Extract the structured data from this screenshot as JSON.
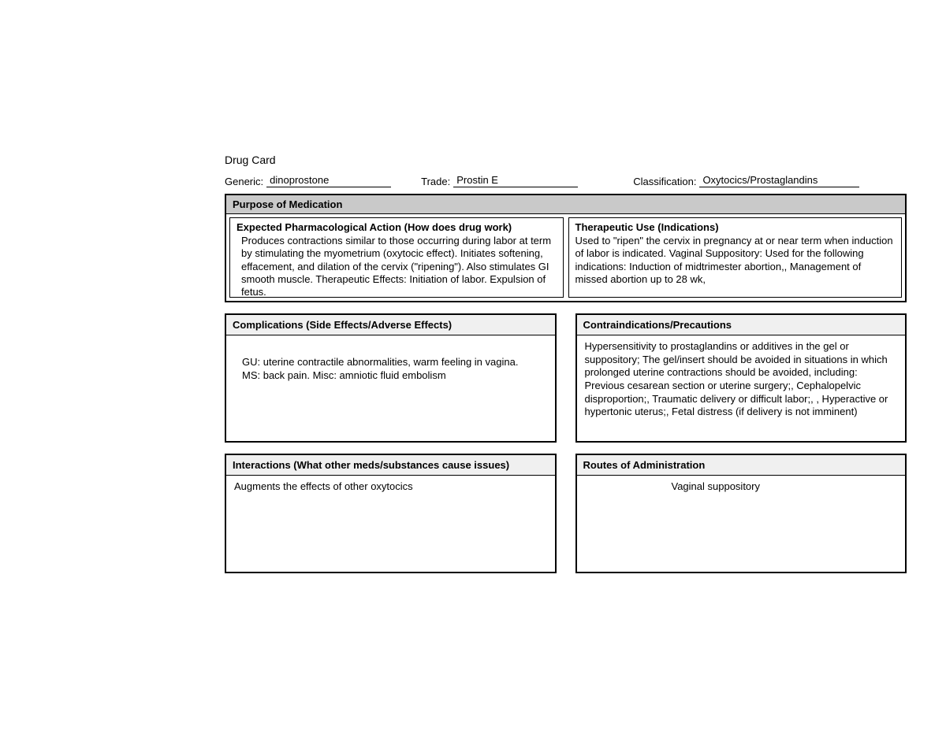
{
  "card": {
    "title": "Drug Card",
    "labels": {
      "generic": "Generic:",
      "trade": "Trade:",
      "classification": "Classification:"
    },
    "values": {
      "generic": "dinoprostone",
      "trade": "Prostin E",
      "classification": "Oxytocics/Prostaglandins"
    }
  },
  "purpose": {
    "header": "Purpose of Medication",
    "left": {
      "title": "Expected Pharmacological Action (How does drug work)",
      "text": "Produces contractions similar to those occurring during labor at term by stimulating the myometrium (oxytocic effect). Initiates softening, effacement, and dilation of the cervix (\"ripening\"). Also stimulates GI smooth muscle. Therapeutic Effects: Initiation of labor. Expulsion of fetus."
    },
    "right": {
      "title": "Therapeutic Use (Indications)",
      "text": "Used to \"ripen\" the cervix in pregnancy at or near term when induction of labor is indicated. Vaginal Suppository: Used for the following indications: Induction of midtrimester abortion,, Management of missed abortion up to 28 wk,"
    }
  },
  "complications": {
    "title": "Complications (Side Effects/Adverse Effects)",
    "text": "GU: uterine contractile abnormalities, warm feeling in vagina. MS: back pain. Misc: amniotic fluid embolism"
  },
  "contraindications": {
    "title": "Contraindications/Precautions",
    "text": "Hypersensitivity to prostaglandins or additives in the gel or suppository; The gel/insert should be avoided in situations in which prolonged uterine contractions should be avoided, including: Previous cesarean section or uterine surgery;, Cephalopelvic disproportion;, Traumatic delivery or difficult labor;, , Hyperactive or hypertonic uterus;, Fetal distress (if delivery is not imminent)"
  },
  "interactions": {
    "title": "Interactions (What other meds/substances cause issues)",
    "text": "Augments the effects of other oxytocics"
  },
  "routes": {
    "title": "Routes of Administration",
    "text": "Vaginal suppository"
  },
  "colors": {
    "background": "#ffffff",
    "text": "#000000",
    "border": "#000000",
    "header_fill_dark": "#c9c9c9",
    "header_fill_light": "#f0f0f0"
  },
  "typography": {
    "family": "Arial",
    "base_size_pt": 10,
    "title_size_pt": 11
  }
}
